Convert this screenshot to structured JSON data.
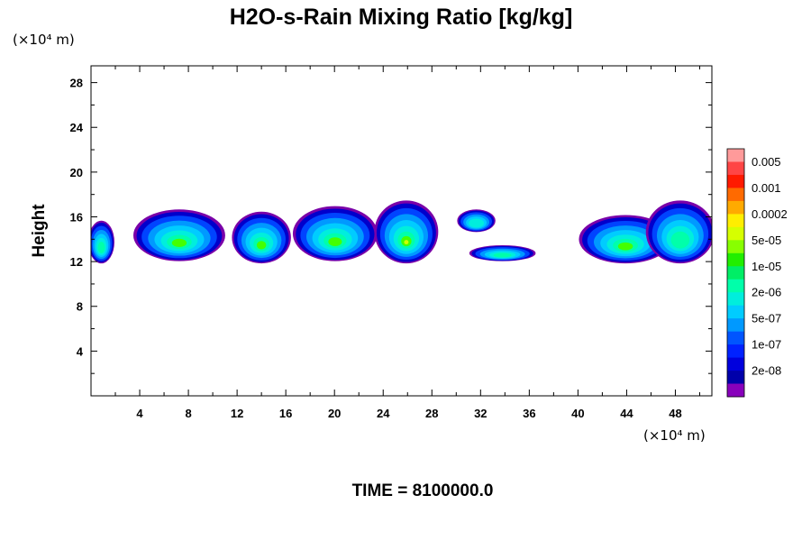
{
  "chart_data": {
    "type": "heatmap",
    "title": "H2O-s-Rain Mixing Ratio [kg/kg]",
    "ylabel": "Height",
    "x_unit": "(×10⁴ m)",
    "y_unit": "(×10⁴ m)",
    "xlim": [
      0,
      51
    ],
    "ylim": [
      0,
      29.5
    ],
    "x_ticks": [
      4,
      8,
      12,
      16,
      20,
      24,
      28,
      32,
      36,
      40,
      44,
      48
    ],
    "y_ticks": [
      4,
      8,
      12,
      16,
      20,
      24,
      28
    ],
    "footer": "TIME = 8100000.0",
    "colorbar": {
      "labels": [
        "0.005",
        "0.001",
        "0.0002",
        "5e-05",
        "1e-05",
        "2e-06",
        "5e-07",
        "1e-07",
        "2e-08"
      ],
      "colors_top_to_bottom": [
        "#ff9a9a",
        "#ff4545",
        "#ff1a00",
        "#ff6a00",
        "#ffaa00",
        "#ffee00",
        "#d6ff00",
        "#88ff00",
        "#22ee00",
        "#00ee66",
        "#00ffaa",
        "#00eedd",
        "#00ccff",
        "#0099ff",
        "#0055ff",
        "#0022ff",
        "#0000dd",
        "#0000aa",
        "#8800bb"
      ]
    },
    "clouds": [
      {
        "x": [
          0,
          1.7
        ],
        "y": [
          12.0,
          15.5
        ],
        "max_level": "2e-06"
      },
      {
        "x": [
          3.7,
          10.8
        ],
        "y": [
          12.2,
          16.5
        ],
        "max_level": "1e-05"
      },
      {
        "x": [
          11.8,
          16.2
        ],
        "y": [
          12.0,
          16.3
        ],
        "max_level": "1e-05"
      },
      {
        "x": [
          16.8,
          23.3
        ],
        "y": [
          12.2,
          16.8
        ],
        "max_level": "1e-05"
      },
      {
        "x": [
          23.5,
          28.3
        ],
        "y": [
          12.0,
          17.3
        ],
        "max_level": "5e-05"
      },
      {
        "x": [
          30.3,
          33.0
        ],
        "y": [
          14.8,
          16.5
        ],
        "max_level": "5e-07"
      },
      {
        "x": [
          31.3,
          36.3
        ],
        "y": [
          12.2,
          13.3
        ],
        "max_level": "2e-06"
      },
      {
        "x": [
          40.3,
          47.5
        ],
        "y": [
          12.0,
          16.0
        ],
        "max_level": "1e-05"
      },
      {
        "x": [
          45.8,
          51.0
        ],
        "y": [
          12.0,
          17.3
        ],
        "max_level": "2e-06"
      }
    ]
  }
}
